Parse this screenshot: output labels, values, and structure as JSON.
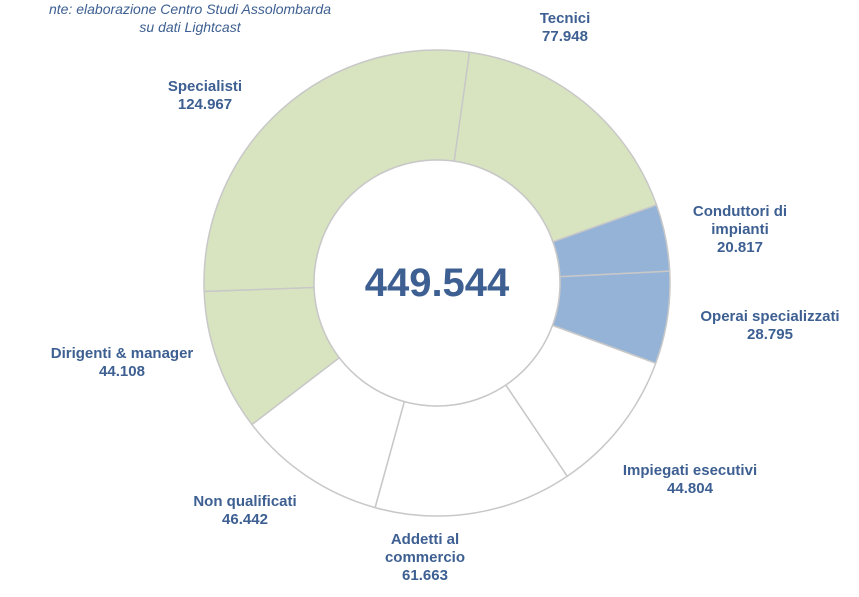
{
  "chart_data": {
    "type": "donut",
    "source": [
      "nte: elaborazione Centro Studi Assolombarda",
      "su dati Lightcast"
    ],
    "center_label": "449.544",
    "categories": [
      "Tecnici",
      "Conduttori di impianti",
      "Operai specializzati",
      "Impiegati esecutivi",
      "Addetti al commercio",
      "Non qualificati",
      "Dirigenti & manager",
      "Specialisti"
    ],
    "values": [
      77948,
      20817,
      28795,
      44804,
      61663,
      46442,
      44108,
      124967
    ],
    "value_labels": [
      "77.948",
      "20.817",
      "28.795",
      "44.804",
      "61.663",
      "46.442",
      "44.108",
      "124.967"
    ],
    "colors": [
      "#d8e4bf",
      "#95b3d7",
      "#95b3d7",
      "#ffffff",
      "#ffffff",
      "#ffffff",
      "#d8e4bf",
      "#d8e4bf"
    ]
  }
}
